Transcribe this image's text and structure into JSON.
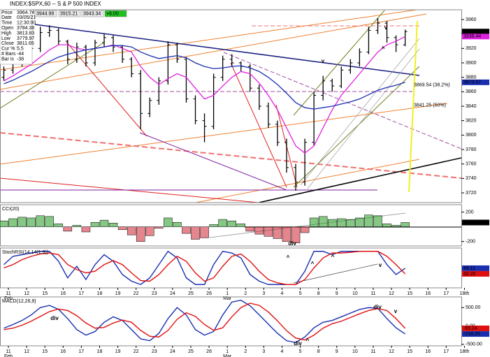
{
  "chart_data": [
    {
      "type": "ohlc",
      "title": "INDEX:$SPX,60 -- S & P 500 INDEX",
      "header_values": [
        "3944.99",
        "3915.21",
        "3943.34",
        "+6.00"
      ],
      "info": [
        {
          "label": "Price",
          "value": 3964.74
        },
        {
          "label": "Date",
          "value": "03/05/21"
        },
        {
          "label": "Time",
          "value": "12:30:00"
        },
        {
          "label": "Open",
          "value": 3784.38
        },
        {
          "label": "High",
          "value": 3813.83
        },
        {
          "label": "Low",
          "value": 3779.97
        },
        {
          "label": "Close",
          "value": 3811.65
        },
        {
          "label": "Cur %",
          "value": 5.5
        },
        {
          "label": "# Bars",
          "value": -44
        },
        {
          "label": "Bar is",
          "value": -38
        }
      ],
      "x": [
        -0.25,
        0.25,
        0.75,
        1.25,
        1.75,
        2.25,
        2.75,
        3.25,
        3.75,
        4.25,
        4.75,
        5.25,
        5.75,
        6.25,
        6.75,
        7.25,
        7.75,
        8.25,
        8.75,
        9.25,
        9.75,
        10.25,
        10.75,
        11.25,
        11.75,
        12.25,
        12.75,
        13.25,
        13.75,
        14.25,
        14.75,
        15.25,
        15.75,
        16.25,
        16.75,
        17.25,
        17.75,
        18.25,
        18.75,
        19.25,
        19.75,
        20.25,
        20.75,
        21.25,
        21.75
      ],
      "open": [
        3880,
        3890,
        3900,
        3910,
        3920,
        3942,
        3945,
        3930,
        3905,
        3922,
        3900,
        3928,
        3935,
        3922,
        3905,
        3885,
        3830,
        3848,
        3875,
        3925,
        3905,
        3850,
        3820,
        3812,
        3880,
        3905,
        3900,
        3895,
        3865,
        3840,
        3815,
        3790,
        3755,
        3735,
        3790,
        3855,
        3875,
        3868,
        3890,
        3900,
        3915,
        3945,
        3955,
        3935,
        3925
      ],
      "high": [
        3895,
        3908,
        3915,
        3925,
        3950,
        3952,
        3948,
        3932,
        3928,
        3925,
        3932,
        3940,
        3938,
        3924,
        3908,
        3890,
        3852,
        3880,
        3930,
        3928,
        3908,
        3855,
        3830,
        3885,
        3910,
        3912,
        3902,
        3898,
        3870,
        3845,
        3820,
        3795,
        3760,
        3795,
        3860,
        3882,
        3878,
        3895,
        3905,
        3920,
        3950,
        3962,
        3958,
        3938,
        3946
      ],
      "low": [
        3875,
        3885,
        3895,
        3905,
        3915,
        3936,
        3925,
        3898,
        3900,
        3895,
        3896,
        3922,
        3915,
        3900,
        3880,
        3808,
        3825,
        3842,
        3870,
        3900,
        3845,
        3815,
        3790,
        3808,
        3875,
        3895,
        3888,
        3860,
        3835,
        3810,
        3785,
        3748,
        3723,
        3730,
        3785,
        3848,
        3860,
        3865,
        3885,
        3895,
        3912,
        3940,
        3928,
        3915,
        3923
      ],
      "close": [
        3890,
        3900,
        3910,
        3920,
        3942,
        3945,
        3930,
        3905,
        3922,
        3900,
        3928,
        3935,
        3922,
        3905,
        3885,
        3830,
        3848,
        3875,
        3925,
        3905,
        3850,
        3820,
        3812,
        3880,
        3905,
        3900,
        3895,
        3865,
        3840,
        3815,
        3790,
        3755,
        3735,
        3790,
        3855,
        3875,
        3868,
        3890,
        3900,
        3915,
        3945,
        3955,
        3935,
        3925,
        3943.34
      ],
      "color": "#000000",
      "overlays": [
        {
          "color": "#e020e0",
          "values": [
            3875,
            3882,
            3890,
            3898,
            3908,
            3918,
            3925,
            3925,
            3920,
            3918,
            3920,
            3922,
            3925,
            3920,
            3915,
            3895,
            3880,
            3870,
            3878,
            3885,
            3880,
            3865,
            3850,
            3855,
            3868,
            3880,
            3888,
            3885,
            3872,
            3855,
            3835,
            3810,
            3785,
            3775,
            3785,
            3810,
            3835,
            3855,
            3870,
            3885,
            3900,
            3915,
            3925,
            3930,
            3936.44
          ]
        },
        {
          "color": "#1a2fb0",
          "values": [
            3871,
            3876,
            3882,
            3888,
            3895,
            3902,
            3908,
            3912,
            3915,
            3918,
            3920,
            3922,
            3924,
            3924,
            3922,
            3915,
            3910,
            3906,
            3908,
            3910,
            3907,
            3900,
            3895,
            3892,
            3893,
            3895,
            3896,
            3893,
            3888,
            3880,
            3870,
            3858,
            3845,
            3838,
            3836,
            3838,
            3840,
            3843,
            3846,
            3850,
            3856,
            3862,
            3866,
            3869,
            3873.07
          ]
        }
      ],
      "xlim": [
        -0.46,
        24.83
      ],
      "ylim": [
        3706.5,
        3973.5
      ],
      "yticks": [
        3720,
        3740,
        3760,
        3780,
        3800,
        3820,
        3840,
        3860,
        3880,
        3900,
        3920,
        3940,
        3960
      ],
      "levels": [
        {
          "value": 3869.54,
          "label": "3869.54 (38.2%)",
          "color": "#2a9a2a"
        },
        {
          "value": 3841.25,
          "label": "3841.25 (50%)",
          "color": "#a020a0"
        }
      ],
      "last_labels": [
        {
          "value": 3943.34,
          "label": "3943.34",
          "color": "#000000"
        },
        {
          "value": 3936.44,
          "label": "3936.44",
          "color": "#e020e0"
        },
        {
          "value": 3873.07,
          "label": "3873.07",
          "color": "#1a2fb0"
        }
      ],
      "annotations": [
        {
          "text": "v",
          "color": "#1a2fb0"
        },
        {
          "text": "v",
          "color": "#e020e0"
        },
        {
          "text": "^",
          "color": "#e020e0"
        }
      ]
    },
    {
      "type": "bar",
      "title": "CCI(20)",
      "x": [
        -0.25,
        0.25,
        0.75,
        1.25,
        1.75,
        2.25,
        2.75,
        3.25,
        3.75,
        4.25,
        4.75,
        5.25,
        5.75,
        6.25,
        6.75,
        7.25,
        7.75,
        8.25,
        8.75,
        9.25,
        9.75,
        10.25,
        10.75,
        11.25,
        11.75,
        12.25,
        12.75,
        13.25,
        13.75,
        14.25,
        14.75,
        15.25,
        15.75,
        16.25,
        16.75,
        17.25,
        17.75,
        18.25,
        18.75,
        19.25,
        19.75,
        20.25,
        20.75,
        21.25,
        21.75
      ],
      "values": [
        80,
        110,
        130,
        120,
        150,
        140,
        40,
        -60,
        20,
        -70,
        60,
        90,
        50,
        -40,
        -110,
        -200,
        -120,
        -20,
        120,
        60,
        -90,
        -170,
        -150,
        30,
        100,
        80,
        40,
        -60,
        -100,
        -130,
        -160,
        -200,
        -220,
        -80,
        120,
        140,
        100,
        110,
        100,
        120,
        160,
        150,
        40,
        20,
        58.17
      ],
      "pos_color": "#1f9a1f",
      "neg_color": "#d02030",
      "xlim": [
        -0.46,
        24.83
      ],
      "ylim": [
        -260,
        300
      ],
      "yticks": [
        200,
        -200
      ],
      "last_labels": [
        {
          "value": 58.17,
          "label": "58.17",
          "color": "#000000"
        }
      ],
      "annotations": [
        {
          "text": "div",
          "color": "#1f9a1f"
        }
      ]
    },
    {
      "type": "line",
      "title": "StochRSI(14,14(1,9))",
      "x": [
        -0.25,
        0.25,
        0.75,
        1.25,
        1.75,
        2.25,
        2.75,
        3.25,
        3.75,
        4.25,
        4.75,
        5.25,
        5.75,
        6.25,
        6.75,
        7.25,
        7.75,
        8.25,
        8.75,
        9.25,
        9.75,
        10.25,
        10.75,
        11.25,
        11.75,
        12.25,
        12.75,
        13.25,
        13.75,
        14.25,
        14.75,
        15.25,
        15.75,
        16.25,
        16.75,
        17.25,
        17.75,
        18.25,
        18.75,
        19.25,
        19.75,
        20.25,
        20.75,
        21.25,
        21.75
      ],
      "series": [
        {
          "color": "#1a2fb0",
          "values": [
            60,
            85,
            90,
            95,
            100,
            100,
            70,
            20,
            55,
            15,
            60,
            90,
            70,
            30,
            10,
            0,
            20,
            60,
            100,
            80,
            20,
            0,
            0,
            60,
            100,
            95,
            80,
            30,
            10,
            0,
            0,
            0,
            0,
            40,
            100,
            100,
            90,
            100,
            100,
            100,
            100,
            100,
            60,
            30,
            49.11
          ]
        },
        {
          "color": "#e01010",
          "values": [
            50,
            60,
            75,
            85,
            92,
            95,
            90,
            60,
            45,
            35,
            40,
            60,
            72,
            60,
            35,
            12,
            10,
            30,
            60,
            85,
            70,
            35,
            10,
            20,
            55,
            85,
            92,
            70,
            40,
            15,
            5,
            0,
            0,
            15,
            50,
            80,
            95,
            95,
            97,
            100,
            100,
            100,
            85,
            60,
            32.2
          ]
        }
      ],
      "xlim": [
        -0.46,
        24.83
      ],
      "ylim": [
        -10,
        110
      ],
      "xticks": [
        {
          "value": 0,
          "label": "11"
        },
        {
          "value": 1,
          "label": "12"
        },
        {
          "value": 2,
          "label": "15"
        },
        {
          "value": 3,
          "label": "16"
        },
        {
          "value": 4,
          "label": "17"
        },
        {
          "value": 5,
          "label": "18"
        },
        {
          "value": 6,
          "label": "19"
        },
        {
          "value": 7,
          "label": "22"
        },
        {
          "value": 8,
          "label": "23"
        },
        {
          "value": 9,
          "label": "24"
        },
        {
          "value": 10,
          "label": "25"
        },
        {
          "value": 11,
          "label": "26"
        },
        {
          "value": 12,
          "label": "1"
        },
        {
          "value": 13,
          "label": "2"
        },
        {
          "value": 14,
          "label": "3"
        },
        {
          "value": 15,
          "label": "4"
        },
        {
          "value": 16,
          "label": "5"
        },
        {
          "value": 17,
          "label": "8"
        },
        {
          "value": 18,
          "label": "9"
        },
        {
          "value": 19,
          "label": "10"
        },
        {
          "value": 20,
          "label": "11"
        },
        {
          "value": 21,
          "label": "12"
        },
        {
          "value": 22,
          "label": "15"
        },
        {
          "value": 23,
          "label": "16"
        },
        {
          "value": 24,
          "label": "17"
        },
        {
          "value": 25,
          "label": "18th"
        }
      ],
      "months": [
        {
          "value": 0,
          "label": "Feb"
        },
        {
          "value": 12,
          "label": "Mar"
        }
      ],
      "last_labels": [
        {
          "value": 49.11,
          "label": "49.11",
          "color": "#1a2fb0"
        },
        {
          "value": 32.2,
          "label": "32.20",
          "color": "#e01010"
        }
      ],
      "annotations": [
        {
          "text": "^",
          "color": "#1a2fb0"
        },
        {
          "text": "^",
          "color": "#1a2fb0"
        },
        {
          "text": "^",
          "color": "#1a2fb0"
        },
        {
          "text": "v",
          "color": "#e01010"
        }
      ]
    },
    {
      "type": "line",
      "title": "MACD(12,26,9)",
      "x": [
        -0.25,
        0.25,
        0.75,
        1.25,
        1.75,
        2.25,
        2.75,
        3.25,
        3.75,
        4.25,
        4.75,
        5.25,
        5.75,
        6.25,
        6.75,
        7.25,
        7.75,
        8.25,
        8.75,
        9.25,
        9.75,
        10.25,
        10.75,
        11.25,
        11.75,
        12.25,
        12.75,
        13.25,
        13.75,
        14.25,
        14.75,
        15.25,
        15.75,
        16.25,
        16.75,
        17.25,
        17.75,
        18.25,
        18.75,
        19.25,
        19.75,
        20.25,
        20.75,
        21.25,
        21.75
      ],
      "series": [
        {
          "color": "#1a2fb0",
          "values": [
            -60,
            40,
            150,
            300,
            500,
            560,
            450,
            200,
            -100,
            -250,
            -150,
            100,
            250,
            150,
            -100,
            -350,
            -400,
            -200,
            200,
            500,
            300,
            -100,
            -250,
            -150,
            300,
            650,
            700,
            550,
            300,
            50,
            -200,
            -400,
            -450,
            -300,
            -50,
            100,
            150,
            250,
            350,
            450,
            500,
            480,
            200,
            -50,
            -218.26
          ]
        },
        {
          "color": "#e01010",
          "values": [
            -100,
            -60,
            20,
            130,
            260,
            390,
            460,
            420,
            280,
            80,
            -60,
            -40,
            80,
            160,
            100,
            -120,
            -280,
            -300,
            -120,
            180,
            360,
            260,
            40,
            -120,
            -50,
            250,
            500,
            620,
            560,
            380,
            140,
            -130,
            -330,
            -380,
            -250,
            -60,
            60,
            130,
            230,
            330,
            420,
            470,
            420,
            200,
            -65.24
          ]
        }
      ],
      "xlim": [
        -0.46,
        24.83
      ],
      "ylim": [
        -540,
        790
      ],
      "yticks": [
        {
          "value": 500,
          "label": "500.00"
        },
        {
          "value": 0,
          "label": "0.00"
        },
        {
          "value": -500,
          "label": "-500.00"
        }
      ],
      "xticks": [
        {
          "value": 0,
          "label": "11"
        },
        {
          "value": 1,
          "label": "12"
        },
        {
          "value": 2,
          "label": "15"
        },
        {
          "value": 3,
          "label": "16"
        },
        {
          "value": 4,
          "label": "17"
        },
        {
          "value": 5,
          "label": "18"
        },
        {
          "value": 6,
          "label": "19"
        },
        {
          "value": 7,
          "label": "22"
        },
        {
          "value": 8,
          "label": "23"
        },
        {
          "value": 9,
          "label": "24"
        },
        {
          "value": 10,
          "label": "25"
        },
        {
          "value": 11,
          "label": "26"
        },
        {
          "value": 12,
          "label": "1"
        },
        {
          "value": 13,
          "label": "2"
        },
        {
          "value": 14,
          "label": "3"
        },
        {
          "value": 15,
          "label": "4"
        },
        {
          "value": 16,
          "label": "5"
        },
        {
          "value": 17,
          "label": "8"
        },
        {
          "value": 18,
          "label": "9"
        },
        {
          "value": 19,
          "label": "10"
        },
        {
          "value": 20,
          "label": "11"
        },
        {
          "value": 21,
          "label": "12"
        },
        {
          "value": 22,
          "label": "15"
        },
        {
          "value": 23,
          "label": "16"
        },
        {
          "value": 24,
          "label": "17"
        },
        {
          "value": 25,
          "label": "18th"
        }
      ],
      "months": [
        {
          "value": 0,
          "label": "Feb"
        },
        {
          "value": 12,
          "label": "Mar"
        }
      ],
      "last_labels": [
        {
          "value": -65.24,
          "label": "-65.24",
          "color": "#e01010"
        },
        {
          "value": -218.26,
          "label": "-218.26",
          "color": "#1a2fb0"
        }
      ],
      "annotations": [
        {
          "text": "div",
          "color": "#e01010"
        },
        {
          "text": "div",
          "color": "#e01010"
        },
        {
          "text": "v",
          "color": "#e01010"
        },
        {
          "text": "div",
          "color": "#1f9a1f"
        },
        {
          "text": "^",
          "color": "#1a2fb0"
        }
      ]
    }
  ]
}
